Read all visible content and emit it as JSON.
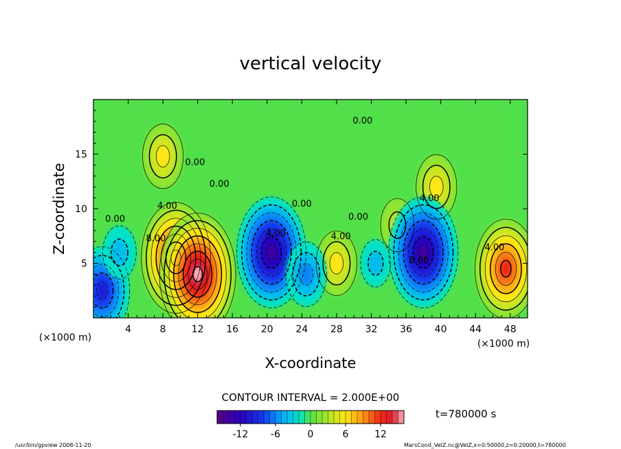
{
  "chart_data": {
    "type": "heatmap",
    "title": "vertical velocity",
    "xlabel": "X-coordinate",
    "ylabel": "Z-coordinate",
    "x_unit": "(×1000 m)",
    "xlim": [
      0,
      50
    ],
    "ylim": [
      0,
      20
    ],
    "x_ticks": [
      4,
      8,
      12,
      16,
      20,
      24,
      28,
      32,
      36,
      40,
      44,
      48
    ],
    "y_ticks": [
      5,
      10,
      15
    ],
    "contour_interval_text": "CONTOUR INTERVAL = 2.000E+00",
    "contour_labels": [
      {
        "text": "0.00",
        "x": 2.5,
        "z": 8.8
      },
      {
        "text": "4.00",
        "x": 8.5,
        "z": 10.0
      },
      {
        "text": "8.00",
        "x": 7.2,
        "z": 7.0
      },
      {
        "text": "0.00",
        "x": 11.7,
        "z": 14.0
      },
      {
        "text": "0.00",
        "x": 14.5,
        "z": 12.0
      },
      {
        "text": "4.00",
        "x": 21.0,
        "z": 7.5
      },
      {
        "text": "0.00",
        "x": 24.0,
        "z": 10.2
      },
      {
        "text": "4.00",
        "x": 28.5,
        "z": 7.2
      },
      {
        "text": "0.00",
        "x": 30.5,
        "z": 9.0
      },
      {
        "text": "0.00",
        "x": 31.0,
        "z": 17.8
      },
      {
        "text": "4.00",
        "x": 38.7,
        "z": 10.7
      },
      {
        "text": "8.00",
        "x": 37.5,
        "z": 5.0
      },
      {
        "text": "4.00",
        "x": 46.2,
        "z": 6.2
      }
    ],
    "features": [
      {
        "kind": "updraft",
        "x": 9.5,
        "z": 5.5,
        "peak": 14
      },
      {
        "kind": "updraft",
        "x": 12.0,
        "z": 4.0,
        "peak": 16
      },
      {
        "kind": "updraft",
        "x": 47.5,
        "z": 4.5,
        "peak": 12
      },
      {
        "kind": "updraft",
        "x": 28.0,
        "z": 5.0,
        "peak": 6
      },
      {
        "kind": "updraft",
        "x": 35.0,
        "z": 8.5,
        "peak": 4
      },
      {
        "kind": "updraft",
        "x": 8.0,
        "z": 14.8,
        "peak": 6
      },
      {
        "kind": "updraft",
        "x": 39.5,
        "z": 12.0,
        "peak": 6
      },
      {
        "kind": "downdraft",
        "x": 20.5,
        "z": 6.0,
        "peak": -14
      },
      {
        "kind": "downdraft",
        "x": 38.0,
        "z": 6.0,
        "peak": -14
      },
      {
        "kind": "downdraft",
        "x": 1.0,
        "z": 2.5,
        "peak": -10
      },
      {
        "kind": "downdraft",
        "x": 3.0,
        "z": 6.0,
        "peak": -4
      },
      {
        "kind": "downdraft",
        "x": 24.5,
        "z": 4.0,
        "peak": -6
      },
      {
        "kind": "downdraft",
        "x": 32.5,
        "z": 5.0,
        "peak": -3
      }
    ],
    "colorbar": {
      "vmin": -16,
      "vmax": 16,
      "ticks": [
        -12,
        -6,
        0,
        6,
        12
      ]
    },
    "time_label": "t=780000 s",
    "footer_left": "/usr/bin/gpview   2008-11-20",
    "footer_right": "MarsCond_VelZ.nc@VelZ,x=0:50000,z=0:20000,t=780000"
  }
}
